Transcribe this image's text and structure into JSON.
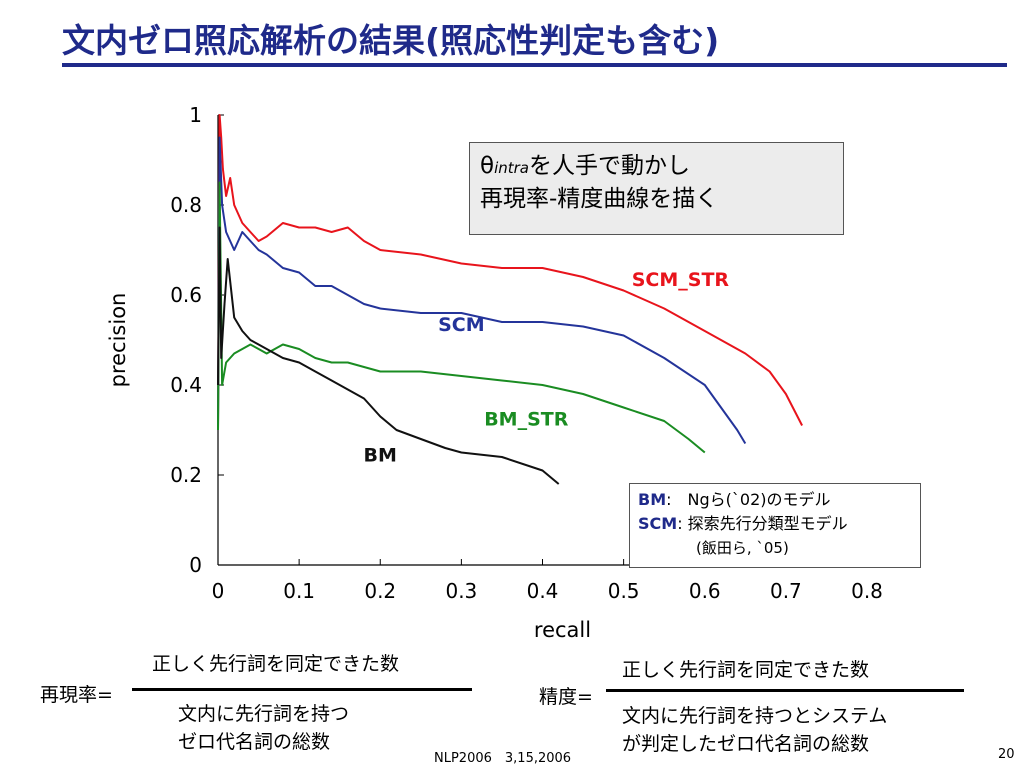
{
  "slide": {
    "title": "文内ゼロ照応解析の結果(照応性判定も含む)",
    "footer_left": "NLP2006　3,15,2006",
    "page_number": "20"
  },
  "callout": {
    "theta": "θ",
    "theta_sub": "intra",
    "line1_rest": "を人手で動かし",
    "line2": "再現率-精度曲線を描く"
  },
  "model_legend": {
    "bm_key": "BM",
    "bm_desc": ":　Ngら(`02)のモデル",
    "scm_key": "SCM",
    "scm_desc": ": 探索先行分類型モデル",
    "scm_cite": "(飯田ら, `05)"
  },
  "formulas": {
    "recall": {
      "label": "再現率=",
      "numerator": "正しく先行詞を同定できた数",
      "denominator_line1": "文内に先行詞を持つ",
      "denominator_line2": "ゼロ代名詞の総数"
    },
    "precision": {
      "label": "精度=",
      "numerator": "正しく先行詞を同定できた数",
      "denominator_line1": "文内に先行詞を持つとシステム",
      "denominator_line2": "が判定したゼロ代名詞の総数"
    }
  },
  "chart_data": {
    "type": "line",
    "title": "",
    "xlabel": "recall",
    "ylabel": "precision",
    "xlim": [
      0,
      0.8
    ],
    "ylim": [
      0,
      1
    ],
    "xticks": [
      "0",
      "0.1",
      "0.2",
      "0.3",
      "0.4",
      "0.5",
      "0.6",
      "0.7",
      "0.8"
    ],
    "yticks": [
      "0",
      "0.2",
      "0.4",
      "0.6",
      "0.8",
      "1"
    ],
    "grid": false,
    "series": [
      {
        "name": "SCM_STR",
        "color": "#e8141c",
        "label_at": [
          0.57,
          0.62
        ],
        "x": [
          0,
          0.002,
          0.004,
          0.006,
          0.01,
          0.015,
          0.02,
          0.03,
          0.04,
          0.05,
          0.06,
          0.08,
          0.1,
          0.12,
          0.14,
          0.16,
          0.18,
          0.2,
          0.25,
          0.3,
          0.35,
          0.4,
          0.45,
          0.5,
          0.55,
          0.6,
          0.65,
          0.68,
          0.7,
          0.72
        ],
        "y": [
          0.3,
          1.0,
          0.95,
          0.88,
          0.82,
          0.86,
          0.8,
          0.76,
          0.74,
          0.72,
          0.73,
          0.76,
          0.75,
          0.75,
          0.74,
          0.75,
          0.72,
          0.7,
          0.69,
          0.67,
          0.66,
          0.66,
          0.64,
          0.61,
          0.57,
          0.52,
          0.47,
          0.43,
          0.38,
          0.31
        ]
      },
      {
        "name": "SCM",
        "color": "#24349a",
        "label_at": [
          0.3,
          0.52
        ],
        "x": [
          0,
          0.002,
          0.005,
          0.01,
          0.02,
          0.03,
          0.04,
          0.05,
          0.06,
          0.08,
          0.1,
          0.12,
          0.14,
          0.16,
          0.18,
          0.2,
          0.25,
          0.3,
          0.35,
          0.4,
          0.45,
          0.5,
          0.55,
          0.6,
          0.62,
          0.64,
          0.65
        ],
        "y": [
          0.3,
          0.95,
          0.8,
          0.74,
          0.7,
          0.74,
          0.72,
          0.7,
          0.69,
          0.66,
          0.65,
          0.62,
          0.62,
          0.6,
          0.58,
          0.57,
          0.56,
          0.56,
          0.54,
          0.54,
          0.53,
          0.51,
          0.46,
          0.4,
          0.35,
          0.3,
          0.27
        ]
      },
      {
        "name": "BM_STR",
        "color": "#1a8c22",
        "label_at": [
          0.38,
          0.31
        ],
        "x": [
          0,
          0.002,
          0.005,
          0.01,
          0.02,
          0.03,
          0.04,
          0.05,
          0.06,
          0.08,
          0.1,
          0.12,
          0.14,
          0.16,
          0.18,
          0.2,
          0.25,
          0.3,
          0.35,
          0.4,
          0.45,
          0.5,
          0.55,
          0.58,
          0.6
        ],
        "y": [
          0.3,
          0.85,
          0.4,
          0.45,
          0.47,
          0.48,
          0.49,
          0.48,
          0.47,
          0.49,
          0.48,
          0.46,
          0.45,
          0.45,
          0.44,
          0.43,
          0.43,
          0.42,
          0.41,
          0.4,
          0.38,
          0.35,
          0.32,
          0.28,
          0.25
        ]
      },
      {
        "name": "BM",
        "color": "#111111",
        "label_at": [
          0.2,
          0.23
        ],
        "x": [
          0,
          0.002,
          0.004,
          0.008,
          0.012,
          0.02,
          0.03,
          0.04,
          0.05,
          0.06,
          0.07,
          0.08,
          0.1,
          0.12,
          0.14,
          0.16,
          0.18,
          0.2,
          0.22,
          0.25,
          0.28,
          0.3,
          0.35,
          0.4,
          0.42
        ],
        "y": [
          0.4,
          0.75,
          0.46,
          0.58,
          0.68,
          0.55,
          0.52,
          0.5,
          0.49,
          0.48,
          0.47,
          0.46,
          0.45,
          0.43,
          0.41,
          0.39,
          0.37,
          0.33,
          0.3,
          0.28,
          0.26,
          0.25,
          0.24,
          0.21,
          0.18
        ]
      }
    ]
  }
}
